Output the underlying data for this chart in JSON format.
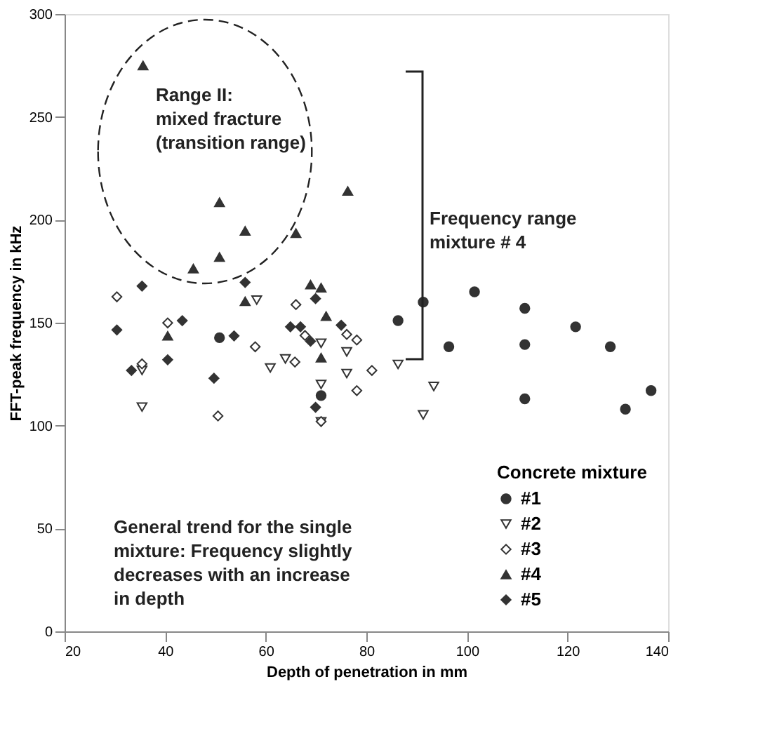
{
  "chart_data": {
    "type": "scatter",
    "xlabel": "Depth of penetration in mm",
    "ylabel": "FFT-peak frequency in kHz",
    "xlim": [
      20,
      140
    ],
    "xticks": [
      20,
      40,
      60,
      80,
      100,
      120,
      140
    ],
    "ylim": [
      0,
      300
    ],
    "yticks": [
      0,
      50,
      100,
      150,
      200,
      250,
      300
    ],
    "grid": false,
    "legend": "bottom right",
    "legend_title": "Concrete mixture",
    "annotations": [
      "Range II:\nmixed fracture\n(transition range)",
      "Frequency range\nmixture # 4",
      "General trend for the single\nmixture: Frequency  slightly\ndecreases with an increase\nin depth"
    ],
    "series": [
      {
        "name": "#1",
        "color": "#333333",
        "marker": "circle",
        "x": [
          50.8,
          71,
          86.3,
          91.3,
          101.5,
          111.5,
          96.4,
          111.5,
          121.6,
          128.5,
          111.5,
          131.5,
          136.6
        ],
        "values": [
          142.7,
          114.6,
          151,
          160,
          165,
          157,
          138.3,
          139.4,
          148,
          138.3,
          113,
          108,
          117
        ]
      },
      {
        "name": "#2",
        "color": "#333333",
        "marker": "triangle-down-open",
        "x": [
          58.2,
          35.4,
          35.4,
          60.9,
          63.9,
          71,
          76.1,
          76.1,
          71,
          71,
          86.3,
          93.4,
          91.3
        ],
        "values": [
          161,
          126.8,
          109,
          128,
          132.4,
          140,
          135.8,
          125.3,
          120,
          101.8,
          129.7,
          119,
          105.2
        ]
      },
      {
        "name": "#3",
        "color": "#333333",
        "marker": "diamond-open",
        "x": [
          30.4,
          40.5,
          66,
          57.9,
          65.8,
          35.4,
          50.5,
          67.8,
          76.1,
          78.1,
          81.1,
          78.1,
          71
        ],
        "values": [
          162.6,
          149.9,
          158.8,
          138.3,
          130.9,
          130,
          104.7,
          143.8,
          144.3,
          141.6,
          126.8,
          117,
          102
        ]
      },
      {
        "name": "#4",
        "color": "#333333",
        "marker": "triangle",
        "x": [
          35.6,
          50.8,
          55.9,
          66,
          76.3,
          50.8,
          45.6,
          68.9,
          71,
          55.9,
          72,
          40.5,
          71
        ],
        "values": [
          275,
          208.5,
          194.6,
          193.5,
          214,
          181.9,
          176.3,
          168.5,
          167,
          160.4,
          153.2,
          143.6,
          133
        ]
      },
      {
        "name": "#5",
        "color": "#333333",
        "marker": "diamond",
        "x": [
          35.4,
          55.9,
          69.9,
          30.4,
          43.4,
          40.5,
          33.3,
          53.7,
          64.9,
          66.9,
          68.9,
          75,
          49.7,
          69.9
        ],
        "values": [
          167.8,
          169.6,
          161.7,
          146.5,
          151,
          132,
          126.8,
          143.6,
          148,
          148,
          141,
          148.8,
          123,
          108.9
        ]
      }
    ]
  }
}
